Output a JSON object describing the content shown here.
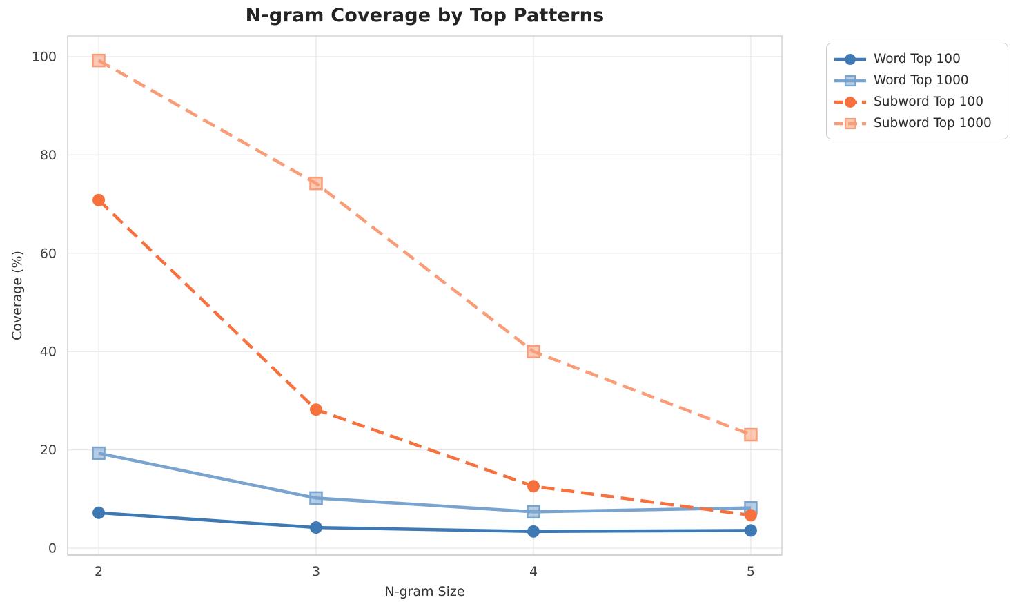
{
  "chart_data": {
    "type": "line",
    "title": "N-gram Coverage by Top Patterns",
    "xlabel": "N-gram Size",
    "ylabel": "Coverage (%)",
    "x": [
      2,
      3,
      4,
      5
    ],
    "x_tick_labels": [
      "2",
      "3",
      "4",
      "5"
    ],
    "y_tick_values": [
      0,
      20,
      40,
      60,
      80,
      100
    ],
    "y_tick_labels": [
      "0",
      "20",
      "40",
      "60",
      "80",
      "100"
    ],
    "xlim": [
      1.857,
      5.143
    ],
    "ylim": [
      -1.4,
      104.2
    ],
    "grid": true,
    "legend_position": "outside-top-right",
    "series": [
      {
        "name": "Word Top 100",
        "values": [
          7.2,
          4.2,
          3.4,
          3.6
        ],
        "color": "#3e79b4",
        "marker": "circle",
        "line": "solid"
      },
      {
        "name": "Word Top 1000",
        "values": [
          19.3,
          10.2,
          7.4,
          8.2
        ],
        "color": "#79a4cf",
        "marker": "square",
        "line": "solid"
      },
      {
        "name": "Subword Top 100",
        "values": [
          70.8,
          28.2,
          12.6,
          6.7
        ],
        "color": "#f7713f",
        "marker": "circle",
        "line": "dashed"
      },
      {
        "name": "Subword Top 1000",
        "values": [
          99.2,
          74.2,
          40.0,
          23.1
        ],
        "color": "#f99c78",
        "marker": "square",
        "line": "dashed"
      }
    ],
    "style": {
      "grid_color": "#e8e8e8",
      "spine_color": "#cfcfcf",
      "tick_label_color": "#3d3d3d",
      "title_color": "#242424"
    }
  }
}
